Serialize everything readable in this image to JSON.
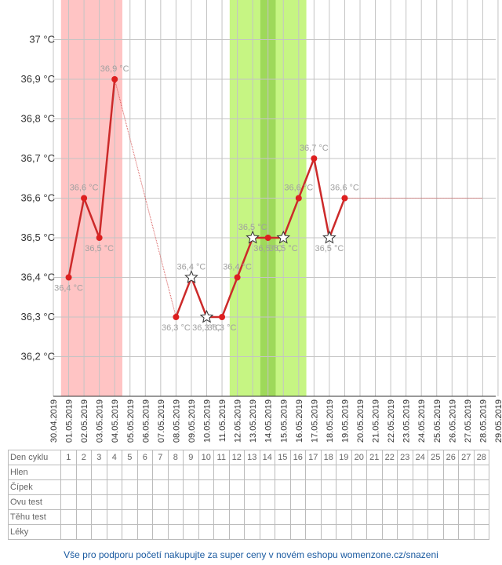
{
  "chart_data": {
    "type": "line",
    "y_unit": "°C",
    "ylim": [
      36.1,
      37.1
    ],
    "y_ticks": [
      36.2,
      36.3,
      36.4,
      36.5,
      36.6,
      36.7,
      36.8,
      36.9,
      37.0
    ],
    "y_tick_labels": [
      "36,2 °C",
      "36,3 °C",
      "36,4 °C",
      "36,5 °C",
      "36,6 °C",
      "36,7 °C",
      "36,8 °C",
      "36,9 °C",
      "37 °C"
    ],
    "x_dates": [
      "30.04.2019",
      "01.05.2019",
      "02.05.2019",
      "03.05.2019",
      "04.05.2019",
      "05.05.2019",
      "06.05.2019",
      "07.05.2019",
      "08.05.2019",
      "09.05.2019",
      "10.05.2019",
      "11.05.2019",
      "12.05.2019",
      "13.05.2019",
      "14.05.2019",
      "15.05.2019",
      "16.05.2019",
      "17.05.2019",
      "18.05.2019",
      "19.05.2019",
      "20.05.2019",
      "21.05.2019",
      "22.05.2019",
      "23.05.2019",
      "24.05.2019",
      "25.05.2019",
      "26.05.2019",
      "27.05.2019",
      "28.05.2019",
      "29.05.2019"
    ],
    "grid": true,
    "points": [
      {
        "date": "01.05.2019",
        "value": 36.4,
        "label": "36,4 °C",
        "marker": "dot"
      },
      {
        "date": "02.05.2019",
        "value": 36.6,
        "label": "36,6 °C",
        "marker": "dot"
      },
      {
        "date": "03.05.2019",
        "value": 36.5,
        "label": "36,5 °C",
        "marker": "dot"
      },
      {
        "date": "04.05.2019",
        "value": 36.9,
        "label": "36,9 °C",
        "marker": "dot"
      },
      {
        "date": "08.05.2019",
        "value": 36.3,
        "label": "36,3 °C",
        "marker": "dot"
      },
      {
        "date": "09.05.2019",
        "value": 36.4,
        "label": "36,4 °C",
        "marker": "star"
      },
      {
        "date": "10.05.2019",
        "value": 36.3,
        "label": "36,3 °C",
        "marker": "star"
      },
      {
        "date": "11.05.2019",
        "value": 36.3,
        "label": "36,3 °C",
        "marker": "dot"
      },
      {
        "date": "12.05.2019",
        "value": 36.4,
        "label": "36,4 °C",
        "marker": "dot"
      },
      {
        "date": "13.05.2019",
        "value": 36.5,
        "label": "36,5 °C",
        "marker": "star"
      },
      {
        "date": "14.05.2019",
        "value": 36.5,
        "label": "36,5 °C",
        "marker": "dot"
      },
      {
        "date": "15.05.2019",
        "value": 36.5,
        "label": "36,5 °C",
        "marker": "star"
      },
      {
        "date": "16.05.2019",
        "value": 36.6,
        "label": "36,6 °C",
        "marker": "dot"
      },
      {
        "date": "17.05.2019",
        "value": 36.7,
        "label": "36,7 °C",
        "marker": "dot"
      },
      {
        "date": "18.05.2019",
        "value": 36.5,
        "label": "36,5 °C",
        "marker": "star"
      },
      {
        "date": "19.05.2019",
        "value": 36.6,
        "label": "36,6 °C",
        "marker": "dot"
      }
    ],
    "projection": {
      "from": "19.05.2019",
      "to": "28.05.2019",
      "value": 36.6
    },
    "bands": [
      {
        "name": "menstruation",
        "from": "01.05.2019",
        "to": "04.05.2019",
        "color": "#ffc4c4"
      },
      {
        "name": "fertile",
        "from": "12.05.2019",
        "to": "16.05.2019",
        "color": "#c6f583"
      },
      {
        "name": "ovulation",
        "from": "14.05.2019",
        "to": "14.05.2019",
        "color": "#9ed95a"
      }
    ],
    "colors": {
      "line": "#cc2a2a",
      "dot": "#dd1f1f",
      "label": "#a0a0a0",
      "grid": "#c4c4c4",
      "axis": "#333333",
      "tick_label": "#333333"
    }
  },
  "table": {
    "cycle_label": "Den cyklu",
    "cycle_days": [
      "1",
      "2",
      "3",
      "4",
      "5",
      "6",
      "7",
      "8",
      "9",
      "10",
      "11",
      "12",
      "13",
      "14",
      "15",
      "16",
      "17",
      "18",
      "19",
      "20",
      "21",
      "22",
      "23",
      "24",
      "25",
      "26",
      "27",
      "28"
    ],
    "rows": [
      "Hlen",
      "Čípek",
      "Ovu test",
      "Těhu test",
      "Léky"
    ]
  },
  "footer": {
    "text": "Vše pro podporu početí nakupujte za super ceny v novém eshopu womenzone.cz/snazeni"
  }
}
